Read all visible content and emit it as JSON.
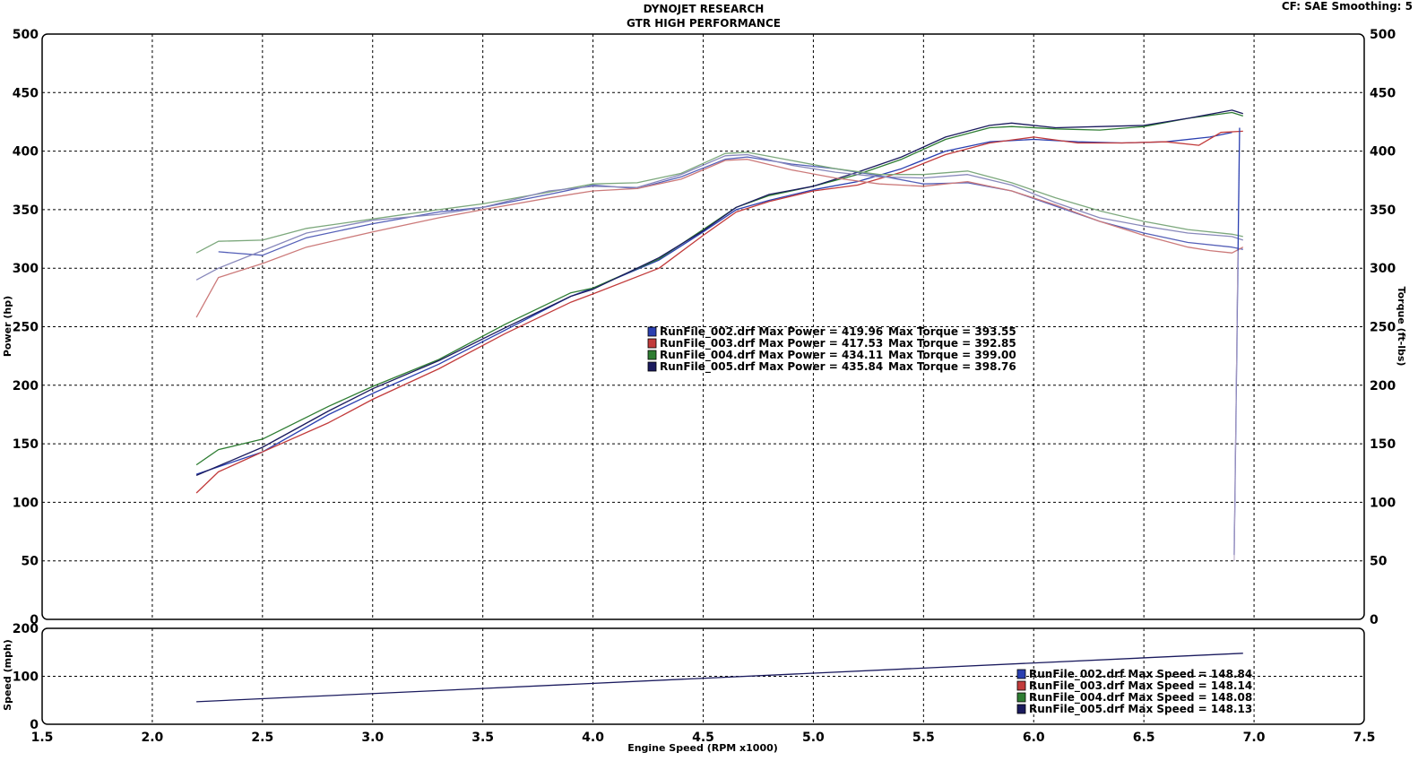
{
  "header": {
    "title1": "DYNOJET RESEARCH",
    "title2": "GTR HIGH PERFORMANCE",
    "corner": "CF: SAE  Smoothing: 5"
  },
  "chart_data": [
    {
      "type": "line",
      "title": "GTR HIGH PERFORMANCE",
      "xlabel": "Engine Speed (RPM x1000)",
      "ylabel": "Power (hp)",
      "ylabel_right": "Torque (ft-lbs)",
      "xlim": [
        1.5,
        7.5
      ],
      "ylim": [
        0,
        500
      ],
      "xticks": [
        "1.5",
        "2.0",
        "2.5",
        "3.0",
        "3.5",
        "4.0",
        "4.5",
        "5.0",
        "5.5",
        "6.0",
        "6.5",
        "7.0",
        "7.5"
      ],
      "yticks": [
        "0",
        "50",
        "100",
        "150",
        "200",
        "250",
        "300",
        "350",
        "400",
        "450",
        "500"
      ],
      "grid": true,
      "legend": [
        {
          "file": "RunFile_002.drf",
          "power_text": "Max Power = 419.96",
          "torque_text": "Max Torque = 393.55",
          "color": "#2a3fb0"
        },
        {
          "file": "RunFile_003.drf",
          "power_text": "Max Power = 417.53",
          "torque_text": "Max Torque = 392.85",
          "color": "#c23b3b"
        },
        {
          "file": "RunFile_004.drf",
          "power_text": "Max Power = 434.11",
          "torque_text": "Max Torque = 399.00",
          "color": "#2e7d32"
        },
        {
          "file": "RunFile_005.drf",
          "power_text": "Max Power = 435.84",
          "torque_text": "Max Torque = 398.76",
          "color": "#1a1a5e"
        }
      ],
      "series": [
        {
          "name": "RunFile_002.drf Power",
          "color": "#2a3fb0",
          "x": [
            2.2,
            2.5,
            2.8,
            3.0,
            3.3,
            3.6,
            3.9,
            4.0,
            4.3,
            4.5,
            4.65,
            4.8,
            5.0,
            5.2,
            5.4,
            5.6,
            5.8,
            6.0,
            6.2,
            6.4,
            6.6,
            6.8,
            6.9
          ],
          "y": [
            124,
            143,
            175,
            193,
            218,
            247,
            276,
            283,
            307,
            331,
            350,
            358,
            367,
            374,
            385,
            400,
            408,
            410,
            408,
            407,
            408,
            412,
            416
          ]
        },
        {
          "name": "RunFile_003.drf Power",
          "color": "#c23b3b",
          "x": [
            2.2,
            2.3,
            2.5,
            2.8,
            3.0,
            3.3,
            3.6,
            3.9,
            4.0,
            4.3,
            4.5,
            4.65,
            4.8,
            5.0,
            5.2,
            5.4,
            5.6,
            5.8,
            6.0,
            6.2,
            6.4,
            6.6,
            6.75,
            6.85,
            6.95
          ],
          "y": [
            108,
            126,
            143,
            168,
            188,
            214,
            244,
            271,
            278,
            300,
            328,
            348,
            357,
            366,
            371,
            382,
            397,
            407,
            412,
            407,
            407,
            408,
            405,
            416,
            417
          ]
        },
        {
          "name": "RunFile_004.drf Power",
          "color": "#2e7d32",
          "x": [
            2.2,
            2.3,
            2.5,
            2.8,
            3.0,
            3.3,
            3.6,
            3.9,
            4.0,
            4.3,
            4.5,
            4.65,
            4.8,
            5.0,
            5.2,
            5.4,
            5.6,
            5.8,
            5.9,
            6.1,
            6.3,
            6.5,
            6.7,
            6.9,
            6.95
          ],
          "y": [
            132,
            145,
            154,
            182,
            199,
            222,
            252,
            279,
            283,
            308,
            333,
            352,
            362,
            370,
            380,
            393,
            410,
            420,
            421,
            419,
            418,
            421,
            428,
            433,
            430
          ]
        },
        {
          "name": "RunFile_005.drf Power",
          "color": "#1a1a5e",
          "x": [
            2.2,
            2.5,
            2.8,
            3.0,
            3.3,
            3.6,
            3.9,
            4.0,
            4.3,
            4.5,
            4.65,
            4.8,
            5.0,
            5.2,
            5.4,
            5.6,
            5.8,
            5.9,
            6.1,
            6.3,
            6.5,
            6.7,
            6.9,
            6.95
          ],
          "y": [
            123,
            147,
            178,
            197,
            221,
            249,
            276,
            282,
            309,
            332,
            352,
            363,
            370,
            382,
            395,
            412,
            422,
            424,
            420,
            421,
            422,
            428,
            435,
            432
          ]
        },
        {
          "name": "RunFile_002.drf Torque",
          "color": "#5560b8",
          "x": [
            2.3,
            2.5,
            2.7,
            3.0,
            3.3,
            3.5,
            3.8,
            4.0,
            4.2,
            4.4,
            4.6,
            4.7,
            4.9,
            5.1,
            5.3,
            5.5,
            5.7,
            5.9,
            6.1,
            6.3,
            6.5,
            6.7,
            6.9,
            6.95
          ],
          "y": [
            314,
            311,
            326,
            338,
            348,
            352,
            363,
            371,
            368,
            378,
            393,
            395,
            389,
            385,
            379,
            372,
            373,
            366,
            353,
            340,
            330,
            322,
            318,
            316
          ]
        },
        {
          "name": "RunFile_003.drf Torque",
          "color": "#cc7a7a",
          "x": [
            2.2,
            2.3,
            2.5,
            2.7,
            3.0,
            3.3,
            3.5,
            3.8,
            4.0,
            4.2,
            4.4,
            4.6,
            4.7,
            4.9,
            5.1,
            5.3,
            5.5,
            5.7,
            5.9,
            6.1,
            6.3,
            6.5,
            6.7,
            6.8,
            6.9,
            6.95
          ],
          "y": [
            258,
            292,
            304,
            318,
            331,
            343,
            350,
            360,
            366,
            368,
            376,
            392,
            393,
            384,
            377,
            372,
            370,
            374,
            366,
            354,
            340,
            328,
            318,
            315,
            313,
            318
          ]
        },
        {
          "name": "RunFile_004.drf Torque",
          "color": "#7ca87c",
          "x": [
            2.2,
            2.3,
            2.5,
            2.7,
            3.0,
            3.3,
            3.5,
            3.8,
            4.0,
            4.2,
            4.4,
            4.6,
            4.7,
            4.9,
            5.1,
            5.3,
            5.5,
            5.7,
            5.9,
            6.1,
            6.3,
            6.5,
            6.7,
            6.9,
            6.95
          ],
          "y": [
            313,
            323,
            324,
            334,
            342,
            350,
            355,
            365,
            372,
            373,
            381,
            398,
            399,
            392,
            385,
            380,
            380,
            383,
            373,
            360,
            349,
            340,
            333,
            329,
            327
          ]
        },
        {
          "name": "RunFile_005.drf Torque",
          "color": "#8888bb",
          "x": [
            2.2,
            2.3,
            2.5,
            2.7,
            3.0,
            3.3,
            3.5,
            3.8,
            4.0,
            4.2,
            4.4,
            4.6,
            4.7,
            4.9,
            5.1,
            5.3,
            5.5,
            5.7,
            5.9,
            6.1,
            6.3,
            6.5,
            6.7,
            6.9,
            6.95
          ],
          "y": [
            290,
            300,
            315,
            330,
            341,
            346,
            352,
            366,
            370,
            369,
            380,
            396,
            397,
            388,
            382,
            378,
            377,
            380,
            371,
            356,
            343,
            336,
            330,
            327,
            324
          ]
        }
      ]
    },
    {
      "type": "line",
      "xlabel": "Engine Speed (RPM x1000)",
      "ylabel": "Speed (mph)",
      "xlim": [
        1.5,
        7.5
      ],
      "ylim": [
        0,
        200
      ],
      "yticks": [
        "0",
        "100",
        "200"
      ],
      "grid": true,
      "legend": [
        {
          "file": "RunFile_002.drf",
          "speed_text": "Max Speed = 148.84",
          "color": "#2a3fb0"
        },
        {
          "file": "RunFile_003.drf",
          "speed_text": "Max Speed = 148.14",
          "color": "#c23b3b"
        },
        {
          "file": "RunFile_004.drf",
          "speed_text": "Max Speed = 148.08",
          "color": "#2e7d32"
        },
        {
          "file": "RunFile_005.drf",
          "speed_text": "Max Speed = 148.13",
          "color": "#1a1a5e"
        }
      ],
      "series": [
        {
          "name": "Speed",
          "color": "#1a1a5e",
          "x": [
            2.2,
            6.95
          ],
          "y": [
            47,
            148
          ]
        }
      ]
    }
  ]
}
